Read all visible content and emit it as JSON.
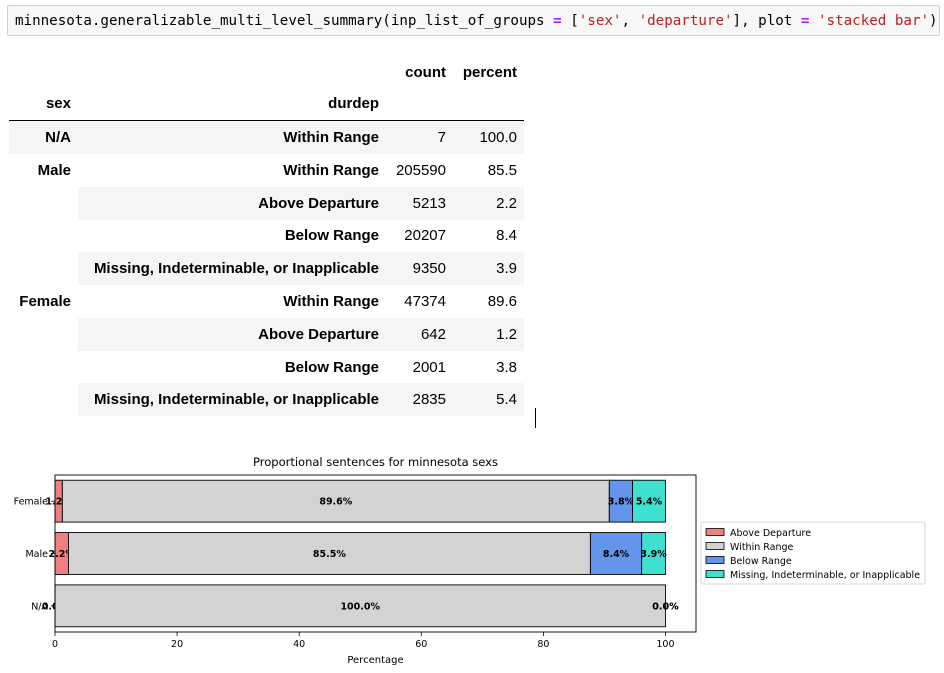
{
  "code": {
    "prefix": "minnesota.generalizable_multi_level_summary(inp_list_of_groups ",
    "eq1": "=",
    "mid1": " [",
    "str1": "'sex'",
    "comma": ", ",
    "str2": "'departure'",
    "mid2": "], plot ",
    "eq2": "=",
    "space": " ",
    "str3": "'stacked bar'",
    "suffix": ")"
  },
  "table": {
    "col_count": "count",
    "col_percent": "percent",
    "idx_sex": "sex",
    "idx_durdep": "durdep",
    "rows": [
      {
        "sex": "N/A",
        "durdep": "Within Range",
        "count": "7",
        "percent": "100.0"
      },
      {
        "sex": "Male",
        "durdep": "Within Range",
        "count": "205590",
        "percent": "85.5"
      },
      {
        "sex": "",
        "durdep": "Above Departure",
        "count": "5213",
        "percent": "2.2"
      },
      {
        "sex": "",
        "durdep": "Below Range",
        "count": "20207",
        "percent": "8.4"
      },
      {
        "sex": "",
        "durdep": "Missing, Indeterminable, or Inapplicable",
        "count": "9350",
        "percent": "3.9"
      },
      {
        "sex": "Female",
        "durdep": "Within Range",
        "count": "47374",
        "percent": "89.6"
      },
      {
        "sex": "",
        "durdep": "Above Departure",
        "count": "642",
        "percent": "1.2"
      },
      {
        "sex": "",
        "durdep": "Below Range",
        "count": "2001",
        "percent": "3.8"
      },
      {
        "sex": "",
        "durdep": "Missing, Indeterminable, or Inapplicable",
        "count": "2835",
        "percent": "5.4"
      }
    ]
  },
  "chart_data": {
    "type": "bar",
    "orientation": "horizontal",
    "stacked": true,
    "title": "Proportional sentences for minnesota sexs",
    "xlabel": "Percentage",
    "ylabel": "",
    "xlim": [
      0,
      105
    ],
    "xticks": [
      0,
      20,
      40,
      60,
      80,
      100
    ],
    "categories": [
      "N/A",
      "Male",
      "Female"
    ],
    "series": [
      {
        "name": "Above Departure",
        "color": "#f08080",
        "values": [
          0.0,
          2.2,
          1.2
        ],
        "labels": [
          "0.0%",
          "2.2%",
          "1.2%"
        ]
      },
      {
        "name": "Within Range",
        "color": "#d3d3d3",
        "values": [
          100.0,
          85.5,
          89.6
        ],
        "labels": [
          "100.0%",
          "85.5%",
          "89.6%"
        ]
      },
      {
        "name": "Below Range",
        "color": "#6495ed",
        "values": [
          0.0,
          8.4,
          3.8
        ],
        "labels": [
          "0.0%",
          "8.4%",
          "3.8%"
        ]
      },
      {
        "name": "Missing, Indeterminable, or Inapplicable",
        "color": "#40e0d0",
        "values": [
          0.0,
          3.9,
          5.4
        ],
        "labels": [
          "0.0%",
          "3.9%",
          "5.4%"
        ]
      }
    ],
    "grid": false,
    "legend_position": "right"
  }
}
